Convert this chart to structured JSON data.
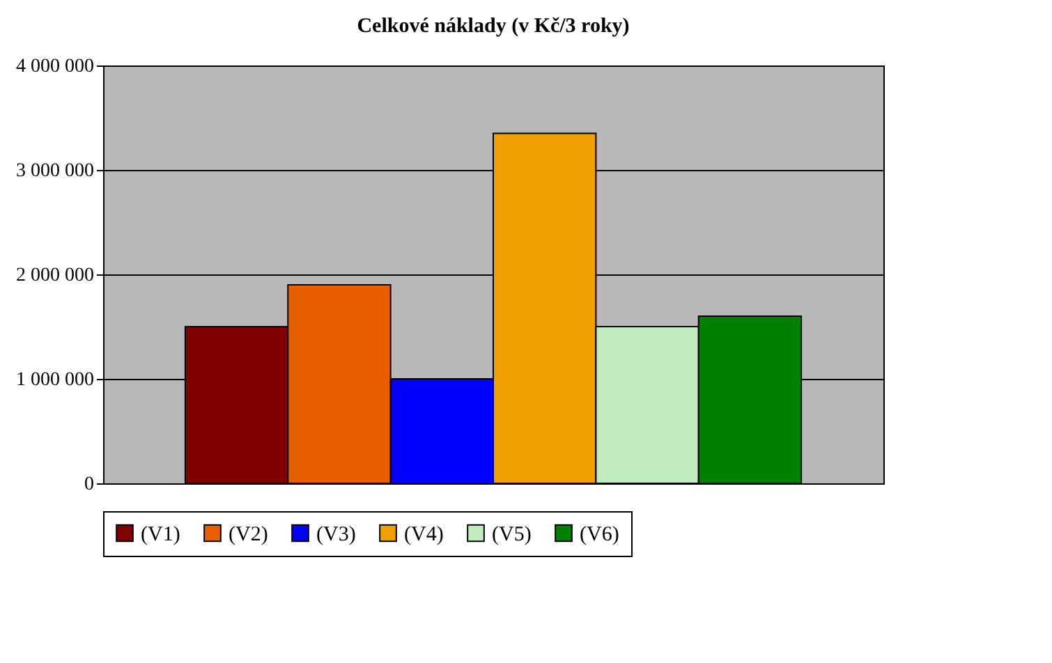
{
  "chart_data": {
    "type": "bar",
    "title": "Celkové náklady (v Kč/3 roky)",
    "categories": [
      null
    ],
    "series": [
      {
        "name": "(V1)",
        "color": "#800000",
        "values": [
          1500000
        ]
      },
      {
        "name": "(V2)",
        "color": "#e85f00",
        "values": [
          1900000
        ]
      },
      {
        "name": "(V3)",
        "color": "#0000ff",
        "values": [
          1000000
        ]
      },
      {
        "name": "(V4)",
        "color": "#f0a000",
        "values": [
          3350000
        ]
      },
      {
        "name": "(V5)",
        "color": "#c0ecc0",
        "values": [
          1500000
        ]
      },
      {
        "name": "(V6)",
        "color": "#008000",
        "values": [
          1600000
        ]
      }
    ],
    "ylim": [
      0,
      4000000
    ],
    "yticks": [
      {
        "value": 0,
        "label": "0"
      },
      {
        "value": 1000000,
        "label": "1 000 000"
      },
      {
        "value": 2000000,
        "label": "2 000 000"
      },
      {
        "value": 3000000,
        "label": "3 000 000"
      },
      {
        "value": 4000000,
        "label": "4 000 000"
      }
    ],
    "grid": "y",
    "legend": "bottom"
  }
}
